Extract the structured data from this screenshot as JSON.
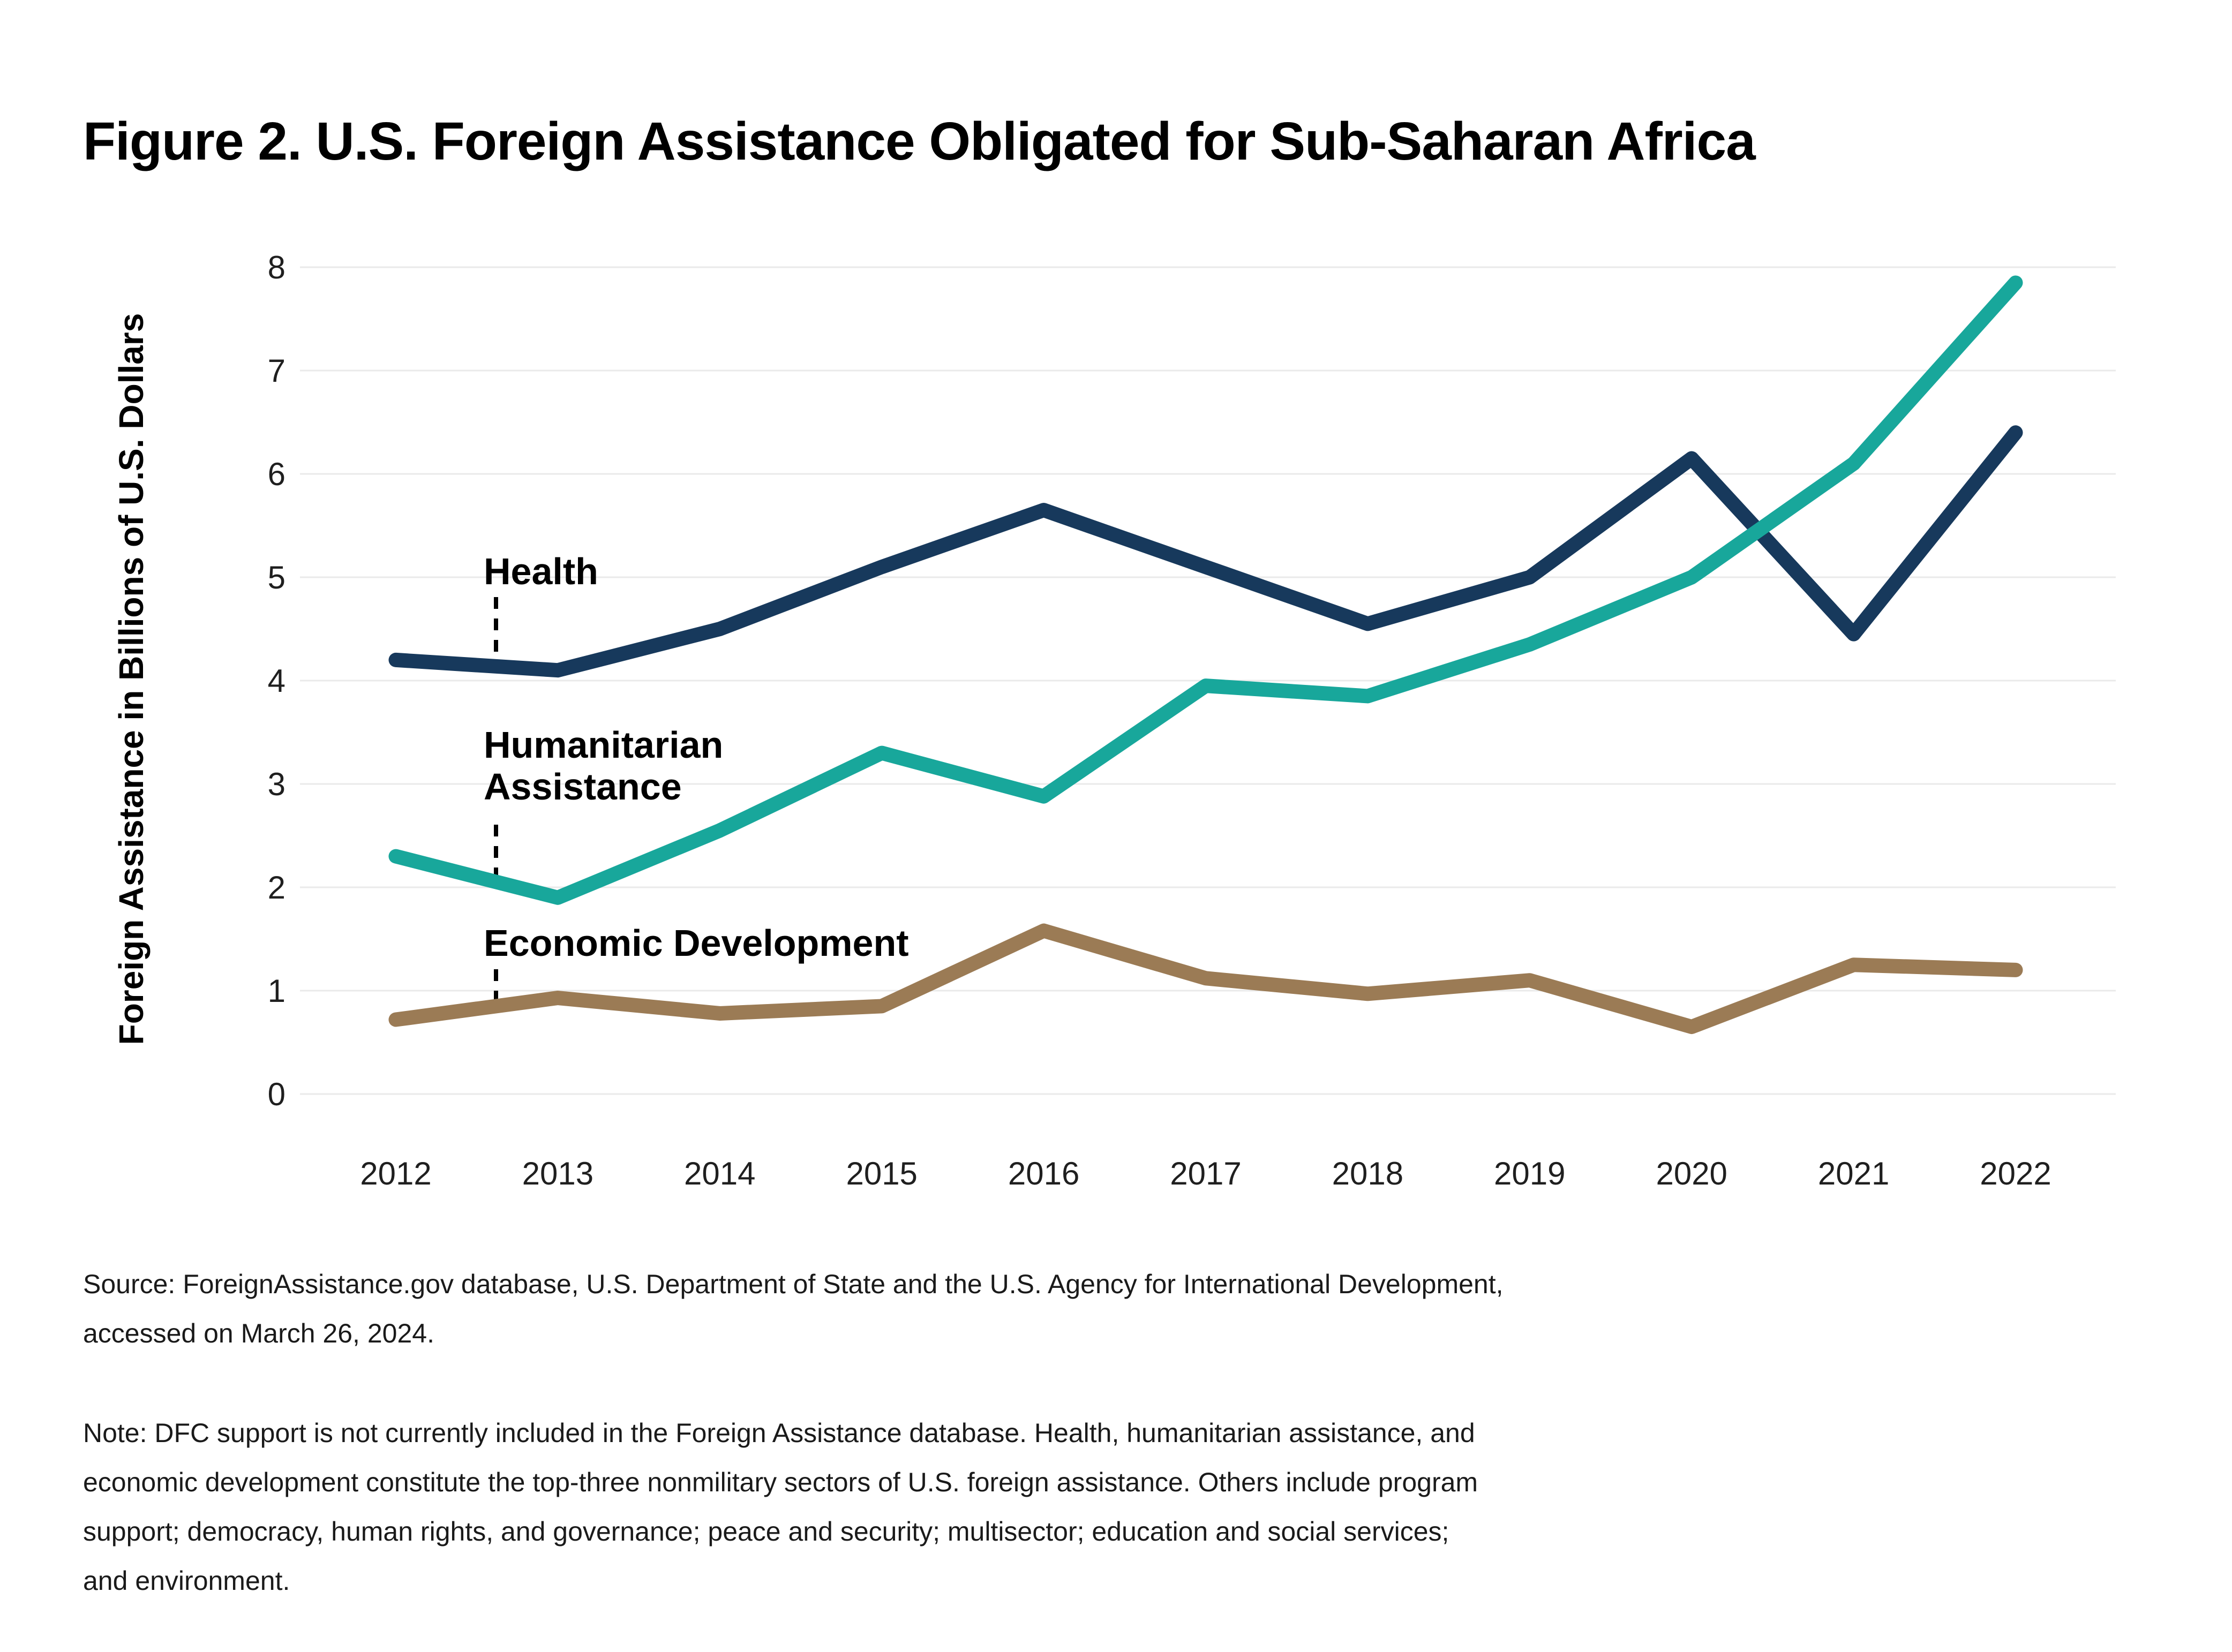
{
  "figure": {
    "title": "Figure 2. U.S. Foreign Assistance Obligated for Sub-Saharan Africa"
  },
  "chart_data": {
    "type": "line",
    "title": "Figure 2. U.S. Foreign Assistance Obligated for Sub-Saharan Africa",
    "xlabel": "",
    "ylabel": "Foreign Assistance in Billions of U.S. Dollars",
    "x": [
      2012,
      2013,
      2014,
      2015,
      2016,
      2017,
      2018,
      2019,
      2020,
      2021,
      2022
    ],
    "ylim": [
      0,
      8
    ],
    "yticks": [
      0,
      1,
      2,
      3,
      4,
      5,
      6,
      7,
      8
    ],
    "grid": "horizontal",
    "legend": "inline-annotations",
    "series": [
      {
        "name": "Health",
        "color": "#17395C",
        "values": [
          4.2,
          4.1,
          4.5,
          5.1,
          5.65,
          5.1,
          4.55,
          5.0,
          6.15,
          4.45,
          6.4
        ]
      },
      {
        "name": "Humanitarian Assistance",
        "color": "#18A79B",
        "values": [
          2.3,
          1.9,
          2.55,
          3.3,
          2.88,
          3.95,
          3.85,
          4.35,
          5.0,
          6.1,
          7.85
        ]
      },
      {
        "name": "Economic Development",
        "color": "#9B7B55",
        "values": [
          0.72,
          0.93,
          0.78,
          0.85,
          1.58,
          1.12,
          0.97,
          1.1,
          0.65,
          1.25,
          1.2
        ]
      }
    ],
    "annotations": [
      {
        "text": "Health",
        "series": "Health"
      },
      {
        "text": "Humanitarian\nAssistance",
        "series": "Humanitarian Assistance"
      },
      {
        "text": "Economic Development",
        "series": "Economic Development"
      }
    ]
  },
  "footer": {
    "source_lines": [
      "Source: ForeignAssistance.gov database, U.S. Department of State and the U.S. Agency for International Development,",
      "accessed on March 26, 2024."
    ],
    "note_lines": [
      "Note: DFC support is not currently included in the Foreign Assistance database. Health, humanitarian assistance, and",
      "economic development constitute the top-three nonmilitary sectors of U.S. foreign assistance. Others include program",
      "support; democracy, human rights, and governance; peace and security; multisector; education and social services;",
      "and environment."
    ]
  },
  "colors": {
    "background": "#ffffff",
    "gridline": "#eaeaea",
    "text": "#1a1a1a",
    "health": "#17395C",
    "humanitarian_assistance": "#18A79B",
    "economic_development": "#9B7B55"
  }
}
